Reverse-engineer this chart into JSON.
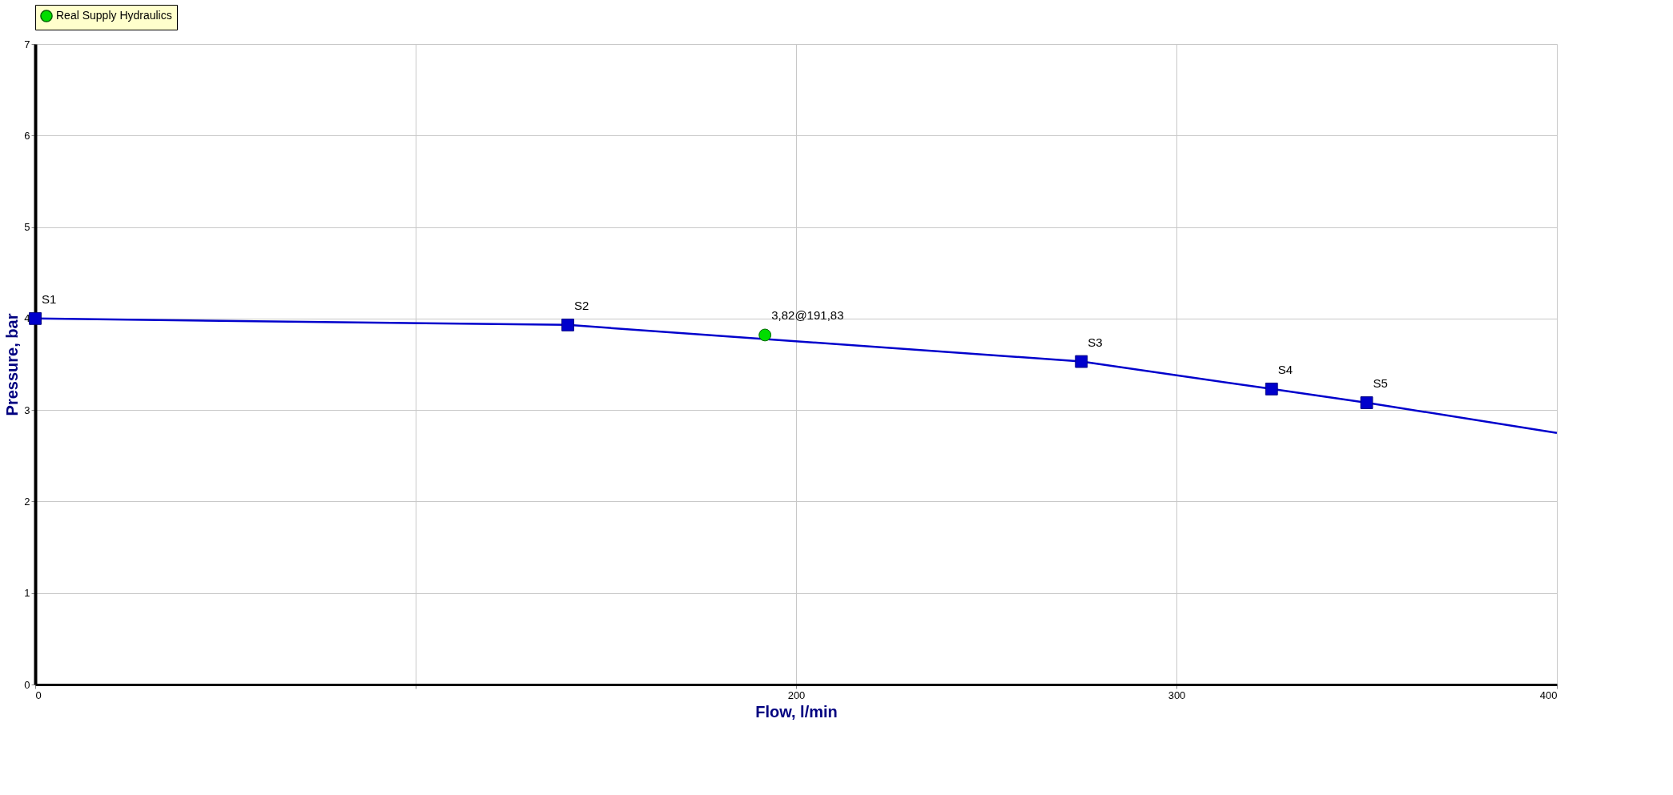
{
  "chart_data": {
    "type": "line",
    "xlabel": "Flow, l/min",
    "ylabel": "Pressure, bar",
    "xlim": [
      0,
      400
    ],
    "xticks": [
      0,
      {
        "value": 100,
        "label": null
      },
      200,
      300,
      400
    ],
    "ylim": [
      0,
      7
    ],
    "yticks": [
      0,
      1,
      2,
      3,
      4,
      5,
      6,
      7
    ],
    "grid": true,
    "legend": "top",
    "series": [
      {
        "color": "#0000cc",
        "x": [
          0,
          140,
          275,
          325,
          350,
          400
        ],
        "values": [
          4.0,
          3.93,
          3.53,
          3.23,
          3.08,
          2.75
        ],
        "marker": "none"
      },
      {
        "type": "scatter",
        "color": "#0000cc",
        "x": [
          0,
          140,
          275,
          325,
          350
        ],
        "values": [
          4.0,
          3.93,
          3.53,
          3.23,
          3.08
        ],
        "marker": "square"
      },
      {
        "type": "scatter",
        "name": "Real Supply Hydraulics",
        "color": "#00dd00",
        "x": [
          191.83
        ],
        "values": [
          3.82
        ],
        "marker": "circle"
      }
    ],
    "annotations": [
      {
        "text": "S1",
        "x": 0,
        "y": 4.0
      },
      {
        "text": "S2",
        "x": 140,
        "y": 3.93
      },
      {
        "text": "3,82@191,83",
        "x": 191.83,
        "y": 3.82
      },
      {
        "text": "S3",
        "x": 275,
        "y": 3.53
      },
      {
        "text": "S4",
        "x": 325,
        "y": 3.23
      },
      {
        "text": "S5",
        "x": 350,
        "y": 3.08
      }
    ]
  }
}
